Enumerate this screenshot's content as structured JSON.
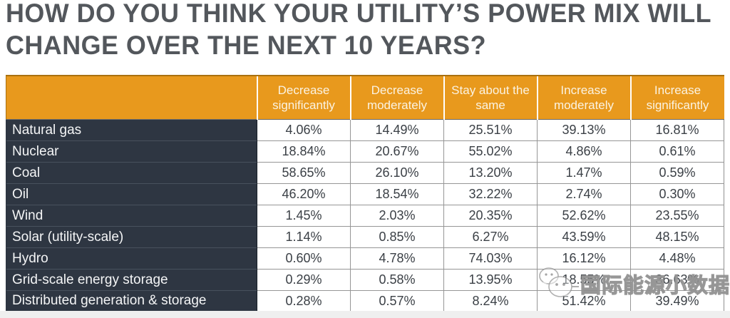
{
  "title": {
    "line1": "HOW DO YOU THINK YOUR UTILITY’S POWER MIX WILL",
    "line2": "CHANGE OVER THE NEXT 10 YEARS?"
  },
  "colors": {
    "header_orange": "#E8991D",
    "header_text": "#FBF3E2",
    "row_label_navy": "#2E3642",
    "cell_text": "#3B4046",
    "title_gray": "#53575C",
    "grid_border": "#969696"
  },
  "table": {
    "column_headers": [
      "Decrease significantly",
      "Decrease moderately",
      "Stay about the same",
      "Increase moderately",
      "Increase significantly"
    ],
    "rows": [
      {
        "label": "Natural gas",
        "values": [
          "4.06%",
          "14.49%",
          "25.51%",
          "39.13%",
          "16.81%"
        ]
      },
      {
        "label": "Nuclear",
        "values": [
          "18.84%",
          "20.67%",
          "55.02%",
          "4.86%",
          "0.61%"
        ]
      },
      {
        "label": "Coal",
        "values": [
          "58.65%",
          "26.10%",
          "13.20%",
          "1.47%",
          "0.59%"
        ]
      },
      {
        "label": "Oil",
        "values": [
          "46.20%",
          "18.54%",
          "32.22%",
          "2.74%",
          "0.30%"
        ]
      },
      {
        "label": "Wind",
        "values": [
          "1.45%",
          "2.03%",
          "20.35%",
          "52.62%",
          "23.55%"
        ]
      },
      {
        "label": "Solar (utility-scale)",
        "values": [
          "1.14%",
          "0.85%",
          "6.27%",
          "43.59%",
          "48.15%"
        ]
      },
      {
        "label": "Hydro",
        "values": [
          "0.60%",
          "4.78%",
          "74.03%",
          "16.12%",
          "4.48%"
        ]
      },
      {
        "label": "Grid-scale energy storage",
        "values": [
          "0.29%",
          "0.58%",
          "13.95%",
          "18.55%",
          "36.63%"
        ]
      },
      {
        "label": "Distributed generation & storage",
        "values": [
          "0.28%",
          "0.57%",
          "8.24%",
          "51.42%",
          "39.49%"
        ]
      }
    ]
  },
  "watermark": {
    "text": "国际能源小数据",
    "logo": "chat-bubbles-icon"
  },
  "chart_data": {
    "type": "table",
    "title": "HOW DO YOU THINK YOUR UTILITY’S POWER MIX WILL CHANGE OVER THE NEXT 10 YEARS?",
    "columns": [
      "Decrease significantly",
      "Decrease moderately",
      "Stay about the same",
      "Increase moderately",
      "Increase significantly"
    ],
    "categories": [
      "Natural gas",
      "Nuclear",
      "Coal",
      "Oil",
      "Wind",
      "Solar (utility-scale)",
      "Hydro",
      "Grid-scale energy storage",
      "Distributed generation & storage"
    ],
    "series": [
      {
        "name": "Decrease significantly",
        "values": [
          4.06,
          18.84,
          58.65,
          46.2,
          1.45,
          1.14,
          0.6,
          0.29,
          0.28
        ]
      },
      {
        "name": "Decrease moderately",
        "values": [
          14.49,
          20.67,
          26.1,
          18.54,
          2.03,
          0.85,
          4.78,
          0.58,
          0.57
        ]
      },
      {
        "name": "Stay about the same",
        "values": [
          25.51,
          55.02,
          13.2,
          32.22,
          20.35,
          6.27,
          74.03,
          13.95,
          8.24
        ]
      },
      {
        "name": "Increase moderately",
        "values": [
          39.13,
          4.86,
          1.47,
          2.74,
          52.62,
          43.59,
          16.12,
          18.55,
          51.42
        ]
      },
      {
        "name": "Increase significantly",
        "values": [
          16.81,
          0.61,
          0.59,
          0.3,
          23.55,
          48.15,
          4.48,
          36.63,
          39.49
        ]
      }
    ],
    "unit": "%"
  }
}
